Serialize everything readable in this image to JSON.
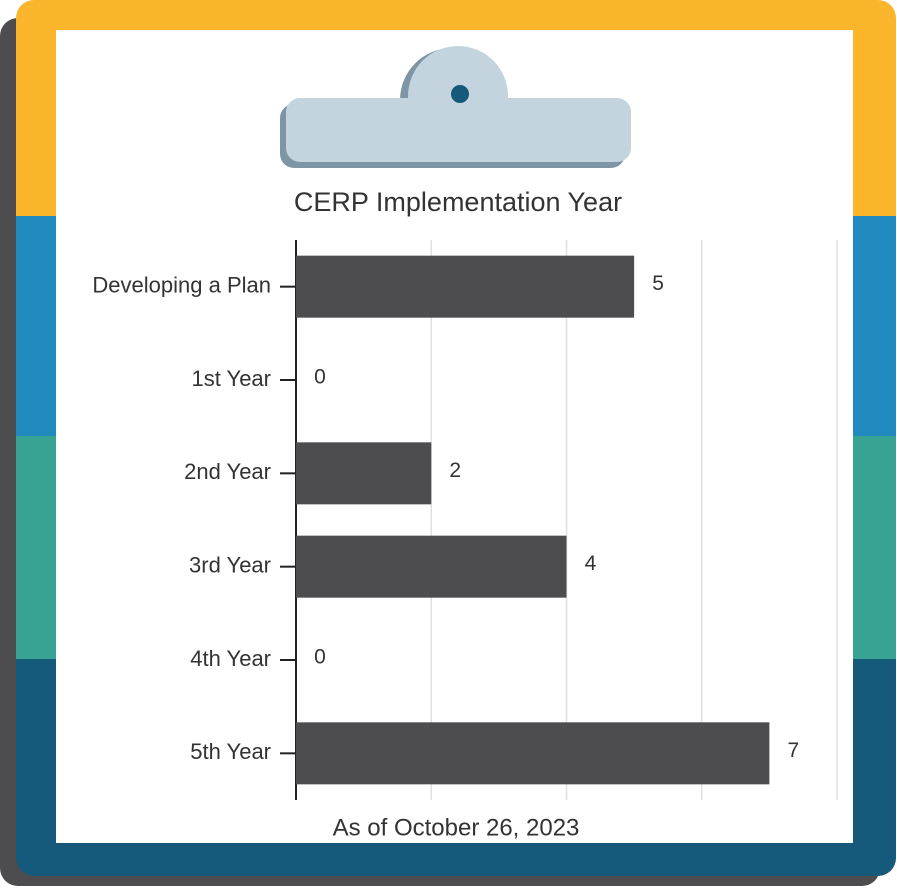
{
  "chart_data": {
    "type": "bar",
    "orientation": "horizontal",
    "title": "CERP Implementation Year",
    "footnote": "As of October 26, 2023",
    "categories": [
      "Developing a Plan",
      "1st Year",
      "2nd Year",
      "3rd Year",
      "4th Year",
      "5th Year"
    ],
    "values": [
      5,
      0,
      2,
      4,
      0,
      7
    ],
    "color": "#4d4d4f",
    "xlim": [
      0,
      8
    ],
    "xticks": [
      0,
      2,
      4,
      6,
      8
    ],
    "grid": true
  }
}
